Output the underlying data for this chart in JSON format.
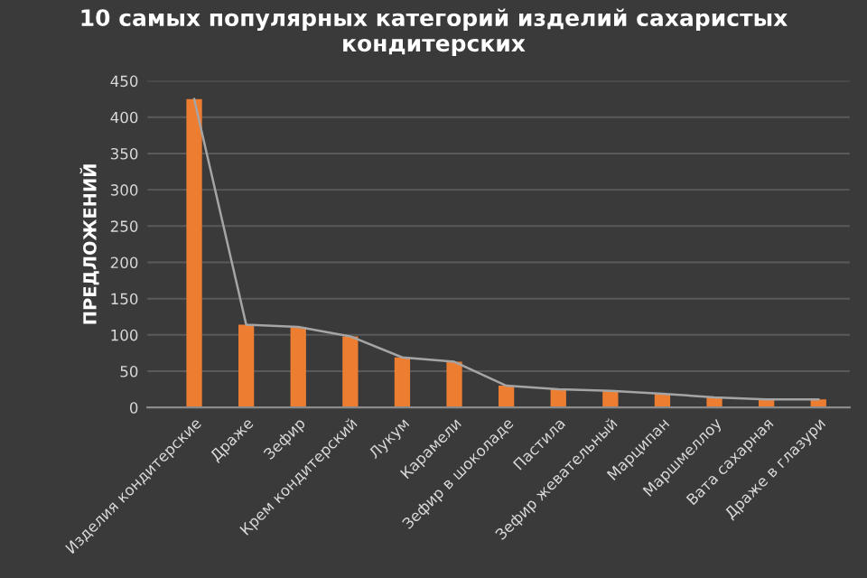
{
  "chart_data": {
    "type": "bar",
    "title": "10 самых популярных категорий изделий сахаристых кондитерских",
    "ylabel": "ПРЕДЛОЖЕНИЙ",
    "categories": [
      "Изделия кондитерские",
      "Драже",
      "Зефир",
      "Крем кондитерский",
      "Лукум",
      "Карамели",
      "Зефир в шоколаде",
      "Пастила",
      "Зефир жевательный",
      "Марципан",
      "Маршмеллоу",
      "Вата сахарная",
      "Драже в глазури"
    ],
    "series": [
      {
        "color": "#ed7d31",
        "values": [
          425,
          114,
          111,
          98,
          69,
          63,
          30,
          25,
          23,
          19,
          14,
          11,
          11
        ]
      },
      {
        "type": "line",
        "color": "#a5a5a5",
        "values": [
          425,
          114,
          111,
          98,
          69,
          63,
          30,
          25,
          23,
          19,
          14,
          11,
          11
        ]
      }
    ],
    "ylim": [
      0,
      450
    ],
    "yticks": [
      0,
      50,
      100,
      150,
      200,
      250,
      300,
      350,
      400,
      450
    ],
    "grid": "y",
    "marker": "none",
    "line_style": "solid"
  }
}
